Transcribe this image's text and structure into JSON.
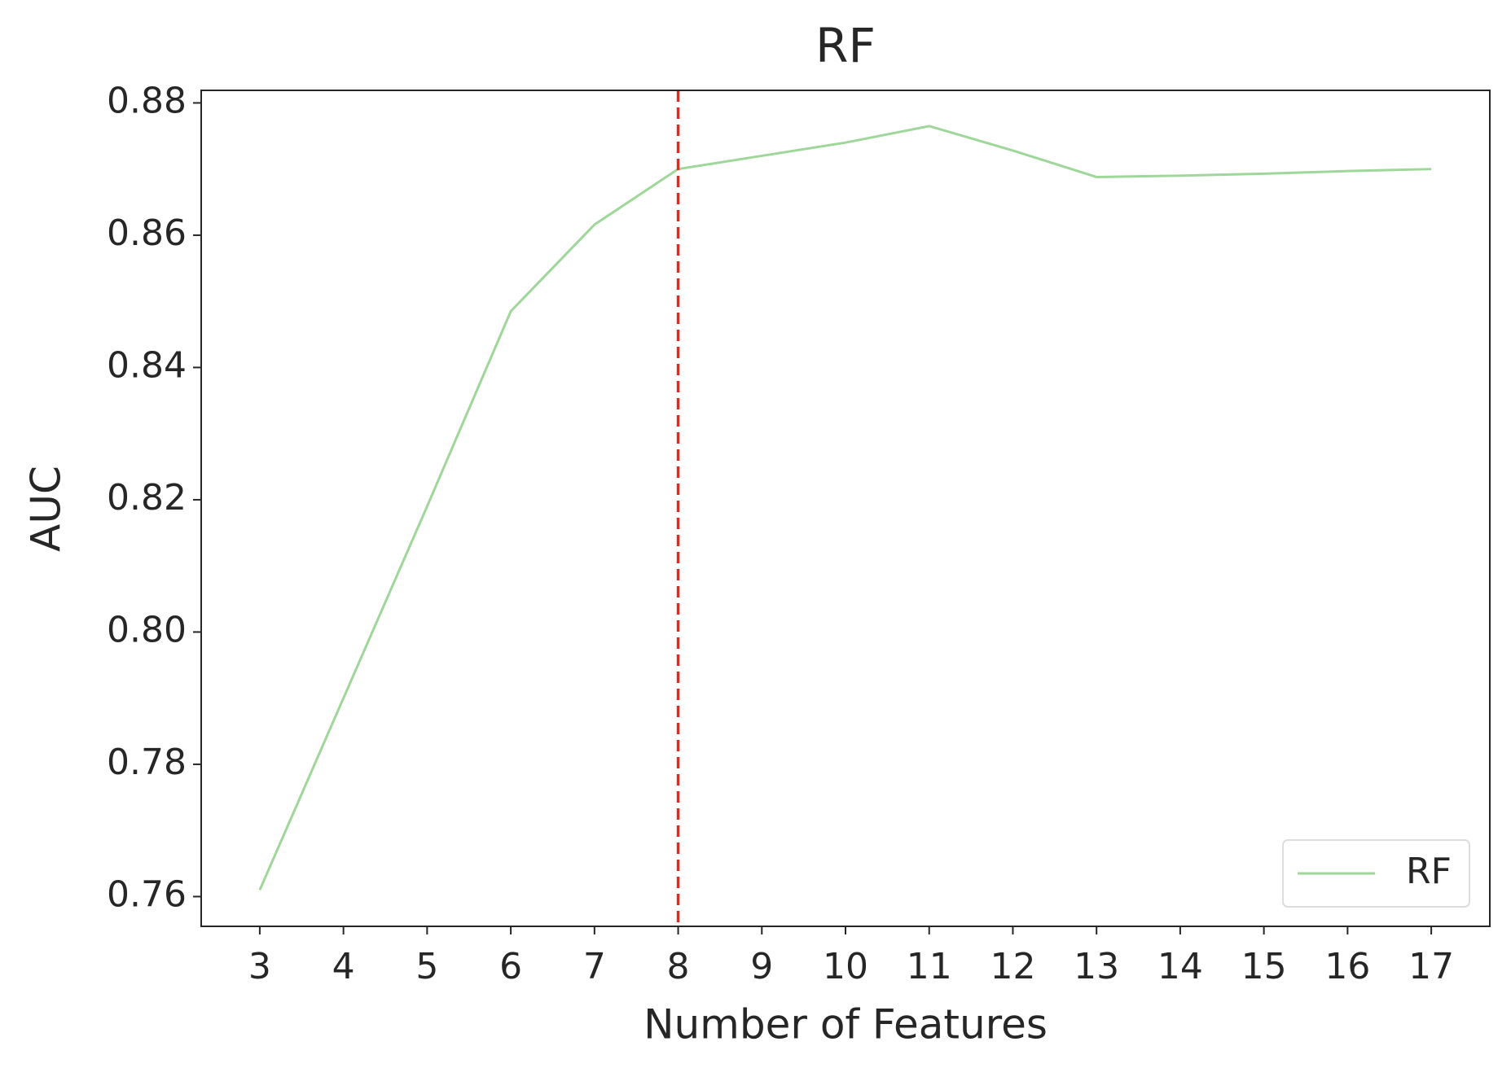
{
  "chart_data": {
    "type": "line",
    "title": "RF",
    "x_label": "Number of Features",
    "y_label": "AUC",
    "x": [
      3,
      4,
      5,
      6,
      7,
      8,
      9,
      10,
      11,
      12,
      13,
      14,
      15,
      16,
      17
    ],
    "series": [
      {
        "name": "RF",
        "color": "#9fd69a",
        "values": [
          0.761,
          0.79,
          0.819,
          0.8485,
          0.8616,
          0.87,
          0.872,
          0.874,
          0.8765,
          0.8728,
          0.8688,
          0.869,
          0.8693,
          0.8697,
          0.87
        ]
      }
    ],
    "vline": {
      "x": 8,
      "color": "#e8251e"
    },
    "xlim": [
      2.3,
      17.7
    ],
    "xticks": [
      3,
      4,
      5,
      6,
      7,
      8,
      9,
      10,
      11,
      12,
      13,
      14,
      15,
      16,
      17
    ],
    "ylim": [
      0.7555,
      0.8819
    ],
    "yticks": [
      0.76,
      0.78,
      {
        "value": 0.8,
        "label": "0.80"
      },
      0.82,
      0.84,
      0.86,
      0.88
    ],
    "legend": "lower right"
  }
}
